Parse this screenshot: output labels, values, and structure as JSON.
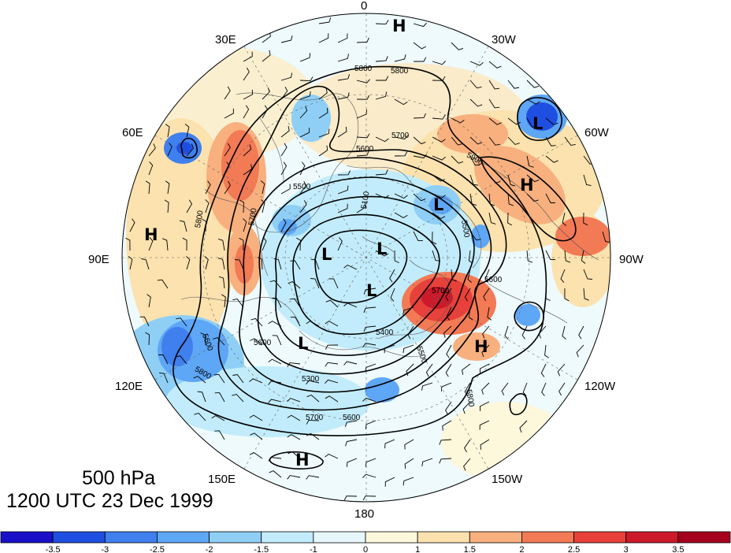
{
  "title": {
    "level": "500 hPa",
    "time": "1200 UTC 23 Dec 1999"
  },
  "longitude_labels": [
    {
      "text": "0",
      "lon": 0
    },
    {
      "text": "30W",
      "lon": -30
    },
    {
      "text": "60W",
      "lon": -60
    },
    {
      "text": "90W",
      "lon": -90
    },
    {
      "text": "120W",
      "lon": -120
    },
    {
      "text": "150W",
      "lon": -150
    },
    {
      "text": "180",
      "lon": 180
    },
    {
      "text": "150E",
      "lon": 150
    },
    {
      "text": "120E",
      "lon": 120
    },
    {
      "text": "90E",
      "lon": 90
    },
    {
      "text": "60E",
      "lon": 60
    },
    {
      "text": "30E",
      "lon": 30
    }
  ],
  "contour_labels": [
    "5800",
    "5800",
    "5700",
    "5600",
    "5500",
    "5100",
    "5900",
    "5700",
    "5600",
    "5400",
    "5300",
    "5500",
    "5600",
    "5800",
    "5700",
    "5600",
    "5600",
    "5700",
    "5800",
    "5800",
    "5500"
  ],
  "centers": [
    {
      "type": "H",
      "name": "h-center-north"
    },
    {
      "type": "L",
      "name": "l-center-northwest-atlantic"
    },
    {
      "type": "H",
      "name": "h-center-north-america"
    },
    {
      "type": "H",
      "name": "h-center-central-asia"
    },
    {
      "type": "L",
      "name": "l-center-greenland"
    },
    {
      "type": "L",
      "name": "l-center-polar-west"
    },
    {
      "type": "L",
      "name": "l-center-pole"
    },
    {
      "type": "L",
      "name": "l-center-polar-south"
    },
    {
      "type": "L",
      "name": "l-center-siberia"
    },
    {
      "type": "H",
      "name": "h-center-alaska"
    },
    {
      "type": "H",
      "name": "h-center-pacific"
    }
  ],
  "colorbar": {
    "labels": [
      "-3.5",
      "-3",
      "-2.5",
      "-2",
      "-1.5",
      "-1",
      "0",
      "1",
      "1.5",
      "2",
      "2.5",
      "3",
      "3.5"
    ],
    "colors": [
      "#1a10c8",
      "#1f4fe0",
      "#3f7fee",
      "#5ea6f6",
      "#8fcff6",
      "#c2ecfb",
      "#e6f8fc",
      "#fdf7dc",
      "#fbe2ae",
      "#f8b07e",
      "#f27a55",
      "#e8403a",
      "#cc1a2a",
      "#a5001e"
    ]
  },
  "icons": {
    "wind_barb": "wind-barb-icon"
  }
}
